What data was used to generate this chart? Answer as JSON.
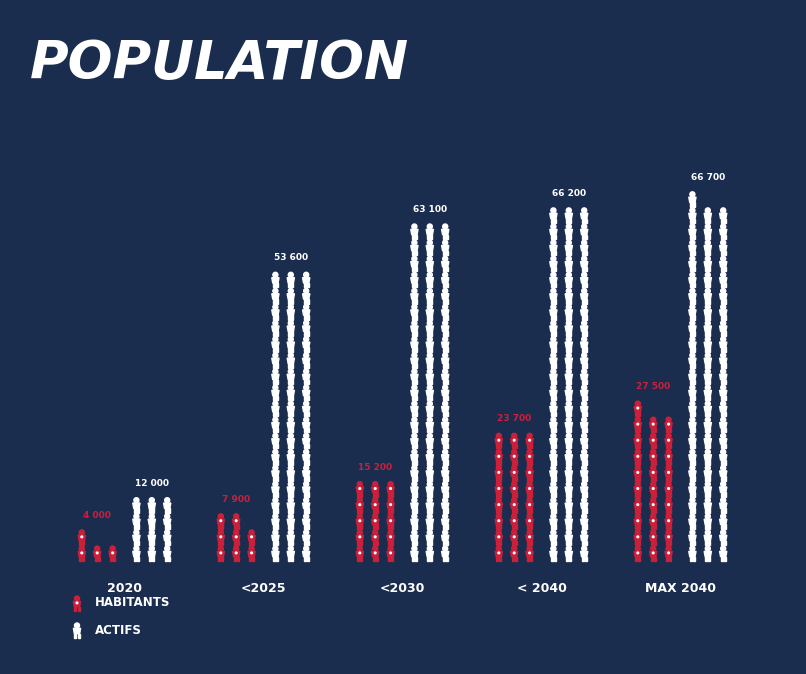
{
  "categories": [
    "2020",
    "<2025",
    "<2030",
    "< 2040",
    "MAX 2040"
  ],
  "habitants": [
    4000,
    7900,
    15200,
    23700,
    27500
  ],
  "actifs": [
    12000,
    53600,
    63100,
    66200,
    66700
  ],
  "habitants_labels": [
    "4 000",
    "7 900",
    "15 200",
    "23 700",
    "27 500"
  ],
  "actifs_labels": [
    "12 000",
    "53 600",
    "63 100",
    "66 200",
    "66 700"
  ],
  "bg_color": "#1b2d4f",
  "red_color": "#cc1f3a",
  "white_color": "#ffffff",
  "title": "POPULATION",
  "legend_habitants": "HABITANTS",
  "legend_actifs": "ACTIFS",
  "n_cols_per_group": 3,
  "icon_unit": 1000,
  "max_value": 70000
}
